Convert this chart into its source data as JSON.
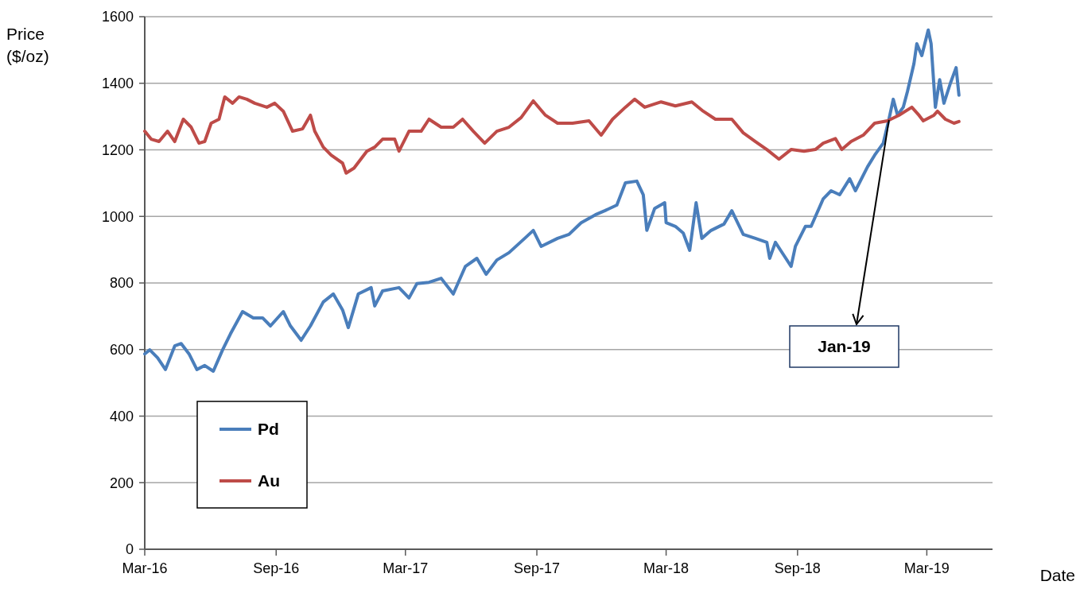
{
  "chart_data": {
    "type": "line",
    "ylabel": "Price\n($/oz)",
    "xlabel": "Date",
    "xlim": [
      "2016-03-01",
      "2019-06-01"
    ],
    "xticks": [
      {
        "value": "2016-03-01",
        "label": "Mar-16"
      },
      {
        "value": "2016-09-01",
        "label": "Sep-16"
      },
      {
        "value": "2017-03-01",
        "label": "Mar-17"
      },
      {
        "value": "2017-09-01",
        "label": "Sep-17"
      },
      {
        "value": "2018-03-01",
        "label": "Mar-18"
      },
      {
        "value": "2018-09-01",
        "label": "Sep-18"
      },
      {
        "value": "2019-03-01",
        "label": "Mar-19"
      }
    ],
    "ylim": [
      0,
      1600
    ],
    "yticks": [
      0,
      200,
      400,
      600,
      800,
      1000,
      1200,
      1400,
      1600
    ],
    "grid": "y",
    "legend": "bottom left",
    "line_style": "solid",
    "marker": "none",
    "annotations": [
      {
        "text": "Jan-19",
        "x": "2019-01-07",
        "y": 1290
      }
    ],
    "series": [
      {
        "name": "Pd",
        "color": "#4a7ebb",
        "x": [
          "2016-03-01",
          "2016-03-08",
          "2016-03-19",
          "2016-03-30",
          "2016-04-12",
          "2016-04-21",
          "2016-05-02",
          "2016-05-13",
          "2016-05-24",
          "2016-06-05",
          "2016-06-18",
          "2016-06-29",
          "2016-07-16",
          "2016-07-31",
          "2016-08-13",
          "2016-08-24",
          "2016-09-11",
          "2016-09-21",
          "2016-10-06",
          "2016-10-19",
          "2016-11-06",
          "2016-11-20",
          "2016-12-03",
          "2016-12-11",
          "2016-12-25",
          "2017-01-12",
          "2017-01-17",
          "2017-01-28",
          "2017-02-20",
          "2017-03-06",
          "2017-03-17",
          "2017-04-03",
          "2017-04-20",
          "2017-05-07",
          "2017-05-24",
          "2017-06-09",
          "2017-06-22",
          "2017-07-07",
          "2017-07-24",
          "2017-08-15",
          "2017-08-27",
          "2017-09-07",
          "2017-09-30",
          "2017-10-16",
          "2017-11-02",
          "2017-11-22",
          "2017-12-05",
          "2017-12-22",
          "2018-01-03",
          "2018-01-19",
          "2018-01-28",
          "2018-02-02",
          "2018-02-13",
          "2018-02-27",
          "2018-03-01",
          "2018-03-14",
          "2018-03-25",
          "2018-04-03",
          "2018-04-12",
          "2018-04-20",
          "2018-05-03",
          "2018-05-21",
          "2018-06-01",
          "2018-06-17",
          "2018-07-04",
          "2018-07-20",
          "2018-07-24",
          "2018-08-01",
          "2018-08-12",
          "2018-08-23",
          "2018-08-29",
          "2018-09-12",
          "2018-09-20",
          "2018-10-07",
          "2018-10-18",
          "2018-10-30",
          "2018-11-13",
          "2018-11-21",
          "2018-12-08",
          "2018-12-18",
          "2018-12-30",
          "2019-01-07",
          "2019-01-13",
          "2019-01-19",
          "2019-01-27",
          "2019-02-02",
          "2019-02-11",
          "2019-02-15",
          "2019-02-22",
          "2019-03-03",
          "2019-03-07",
          "2019-03-13",
          "2019-03-19",
          "2019-03-25",
          "2019-04-03",
          "2019-04-11",
          "2019-04-15"
        ],
        "values": [
          587,
          599,
          575,
          540,
          611,
          618,
          587,
          540,
          552,
          535,
          599,
          647,
          714,
          695,
          695,
          671,
          714,
          671,
          628,
          671,
          743,
          767,
          719,
          666,
          767,
          786,
          731,
          776,
          786,
          755,
          798,
          802,
          814,
          767,
          850,
          874,
          826,
          869,
          891,
          934,
          958,
          910,
          934,
          946,
          981,
          1005,
          1017,
          1034,
          1101,
          1106,
          1065,
          958,
          1024,
          1041,
          981,
          970,
          950,
          898,
          1041,
          934,
          958,
          977,
          1017,
          946,
          934,
          922,
          874,
          922,
          886,
          850,
          910,
          970,
          970,
          1053,
          1077,
          1065,
          1113,
          1077,
          1149,
          1184,
          1220,
          1292,
          1352,
          1304,
          1328,
          1376,
          1459,
          1519,
          1483,
          1560,
          1519,
          1328,
          1411,
          1340,
          1400,
          1447,
          1364
        ]
      },
      {
        "name": "Au",
        "color": "#be4b48",
        "x": [
          "2016-03-01",
          "2016-03-10",
          "2016-03-21",
          "2016-04-02",
          "2016-04-12",
          "2016-04-24",
          "2016-05-05",
          "2016-05-16",
          "2016-05-24",
          "2016-06-02",
          "2016-06-13",
          "2016-06-21",
          "2016-07-02",
          "2016-07-11",
          "2016-07-22",
          "2016-08-02",
          "2016-08-19",
          "2016-08-30",
          "2016-09-11",
          "2016-09-24",
          "2016-10-08",
          "2016-10-19",
          "2016-10-25",
          "2016-11-06",
          "2016-11-17",
          "2016-12-03",
          "2016-12-08",
          "2016-12-19",
          "2017-01-06",
          "2017-01-17",
          "2017-01-28",
          "2017-02-14",
          "2017-02-20",
          "2017-03-06",
          "2017-03-23",
          "2017-04-03",
          "2017-04-20",
          "2017-05-07",
          "2017-05-20",
          "2017-06-04",
          "2017-06-20",
          "2017-07-07",
          "2017-07-24",
          "2017-08-10",
          "2017-08-27",
          "2017-09-13",
          "2017-09-30",
          "2017-10-21",
          "2017-11-13",
          "2017-11-30",
          "2017-12-16",
          "2018-01-03",
          "2018-01-16",
          "2018-01-30",
          "2018-02-22",
          "2018-03-14",
          "2018-04-06",
          "2018-04-22",
          "2018-05-09",
          "2018-06-01",
          "2018-06-17",
          "2018-07-04",
          "2018-07-20",
          "2018-08-06",
          "2018-08-23",
          "2018-09-10",
          "2018-09-26",
          "2018-10-07",
          "2018-10-24",
          "2018-11-02",
          "2018-11-15",
          "2018-12-02",
          "2018-12-18",
          "2019-01-05",
          "2019-01-21",
          "2019-02-08",
          "2019-02-18",
          "2019-02-24",
          "2019-03-11",
          "2019-03-16",
          "2019-03-27",
          "2019-04-08",
          "2019-04-15"
        ],
        "values": [
          1256,
          1232,
          1225,
          1256,
          1225,
          1292,
          1268,
          1220,
          1225,
          1280,
          1292,
          1359,
          1340,
          1359,
          1352,
          1340,
          1328,
          1340,
          1316,
          1256,
          1263,
          1304,
          1256,
          1208,
          1184,
          1160,
          1130,
          1145,
          1196,
          1208,
          1232,
          1232,
          1196,
          1256,
          1256,
          1292,
          1268,
          1268,
          1292,
          1256,
          1220,
          1256,
          1268,
          1297,
          1347,
          1304,
          1280,
          1280,
          1287,
          1244,
          1292,
          1328,
          1352,
          1328,
          1344,
          1332,
          1344,
          1316,
          1292,
          1292,
          1251,
          1225,
          1201,
          1172,
          1201,
          1196,
          1201,
          1220,
          1234,
          1201,
          1225,
          1244,
          1280,
          1287,
          1304,
          1328,
          1304,
          1287,
          1304,
          1316,
          1292,
          1280,
          1285
        ]
      }
    ]
  }
}
